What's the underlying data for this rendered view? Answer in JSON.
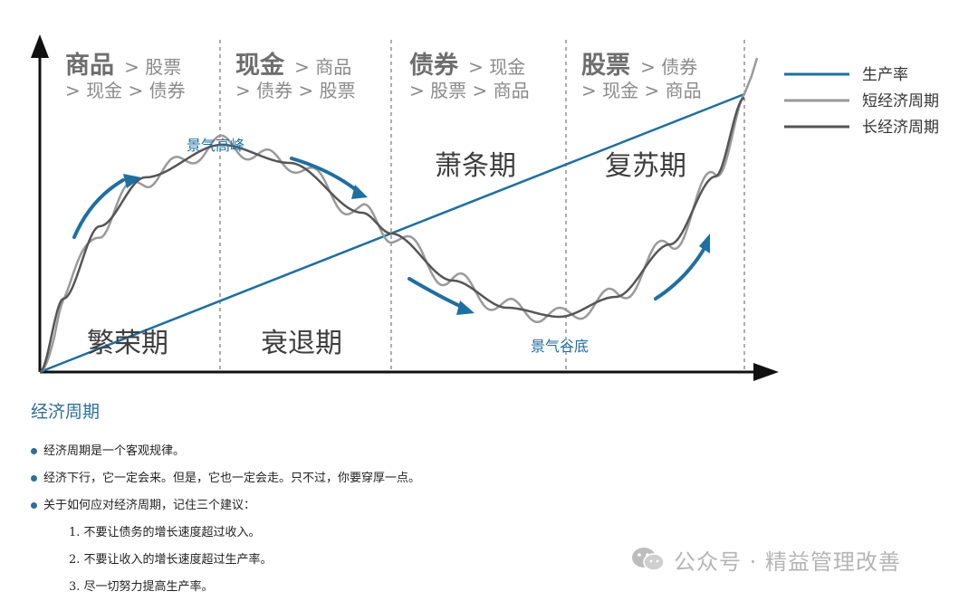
{
  "phases": [
    {
      "main": "商品",
      "rest": "> 股票",
      "line2": "> 现金 > 债券",
      "name": "繁荣期"
    },
    {
      "main": "现金",
      "rest": "> 商品",
      "line2": "> 债券 > 股票",
      "name": "衰退期"
    },
    {
      "main": "债券",
      "rest": "> 现金",
      "line2": "> 股票 > 商品",
      "name": "萧条期"
    },
    {
      "main": "股票",
      "rest": "> 债券",
      "line2": "> 现金 > 商品",
      "name": "复苏期"
    }
  ],
  "annotations": {
    "peak": "景气高峰",
    "trough": "景气谷底"
  },
  "legend": [
    {
      "label": "生产率",
      "color": "#1f6fa0"
    },
    {
      "label": "短经济周期",
      "color": "#9a9a9a"
    },
    {
      "label": "长经济周期",
      "color": "#555555"
    }
  ],
  "section_title": "经济周期",
  "bullets": [
    "经济周期是一个客观规律。",
    "经济下行，它一定会来。但是，它也一定会走。只不过，你要穿厚一点。",
    "关于如何应对经济周期，记住三个建议："
  ],
  "advice": [
    "1. 不要让债务的增长速度超过收入。",
    "2. 不要让收入的增长速度超过生产率。",
    "3. 尽一切努力提高生产率。"
  ],
  "watermark": "公众号 · 精益管理改善",
  "colors": {
    "blue": "#1f6fa0",
    "short": "#9a9a9a",
    "long": "#555555",
    "text_gray": "#8a8a8a"
  }
}
